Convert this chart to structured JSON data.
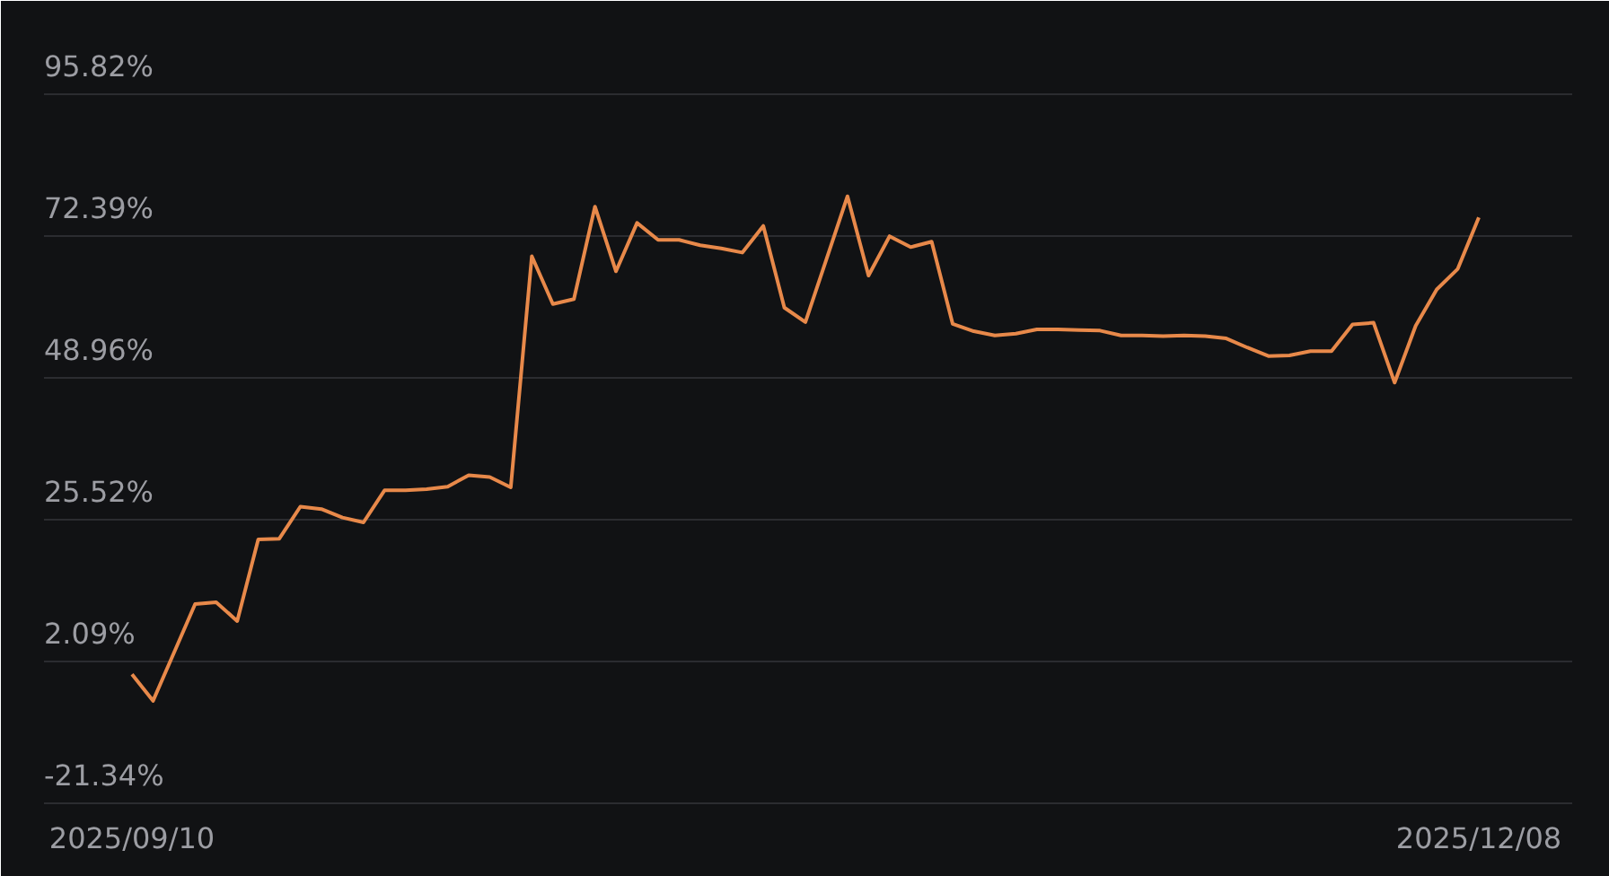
{
  "chart_data": {
    "type": "line",
    "categories": [
      "2025/09/10",
      null,
      null,
      null,
      null,
      null,
      null,
      null,
      null,
      null,
      null,
      null,
      null,
      null,
      null,
      null,
      null,
      null,
      null,
      null,
      null,
      null,
      null,
      null,
      null,
      null,
      null,
      null,
      null,
      null,
      null,
      null,
      null,
      null,
      null,
      null,
      null,
      null,
      null,
      null,
      null,
      null,
      null,
      null,
      null,
      null,
      null,
      null,
      null,
      null,
      null,
      null,
      null,
      null,
      null,
      null,
      null,
      null,
      null,
      null,
      null,
      null,
      null,
      null,
      "2025/12/08"
    ],
    "series": [
      {
        "color": "#e8894a",
        "values": [
          0.0,
          -4.4,
          3.6,
          11.6,
          11.9,
          8.8,
          22.3,
          22.4,
          27.7,
          27.3,
          25.9,
          25.1,
          30.4,
          30.4,
          30.6,
          31.0,
          32.9,
          32.6,
          30.9,
          69.1,
          61.2,
          62.0,
          77.3,
          66.6,
          74.6,
          71.8,
          71.8,
          70.9,
          70.4,
          69.7,
          74.1,
          60.6,
          58.2,
          68.6,
          79.0,
          65.9,
          72.4,
          70.6,
          71.5,
          57.9,
          56.7,
          56.0,
          56.3,
          57.0,
          57.0,
          56.9,
          56.8,
          56.0,
          56.0,
          55.9,
          56.0,
          55.9,
          55.5,
          54.0,
          52.6,
          52.7,
          53.4,
          53.4,
          57.8,
          58.1,
          48.2,
          57.6,
          63.6,
          67.0,
          75.5
        ]
      }
    ],
    "ylim": [
      -33.5,
      111.3
    ],
    "yticks": [
      {
        "value": -21.34,
        "label": "-21.34%"
      },
      {
        "value": 2.09,
        "label": "2.09%"
      },
      {
        "value": 25.52,
        "label": "25.52%"
      },
      {
        "value": 48.96,
        "label": "48.96%"
      },
      {
        "value": 72.39,
        "label": "72.39%"
      },
      {
        "value": 95.82,
        "label": "95.82%"
      }
    ],
    "grid": "y",
    "line_style": "solid"
  }
}
